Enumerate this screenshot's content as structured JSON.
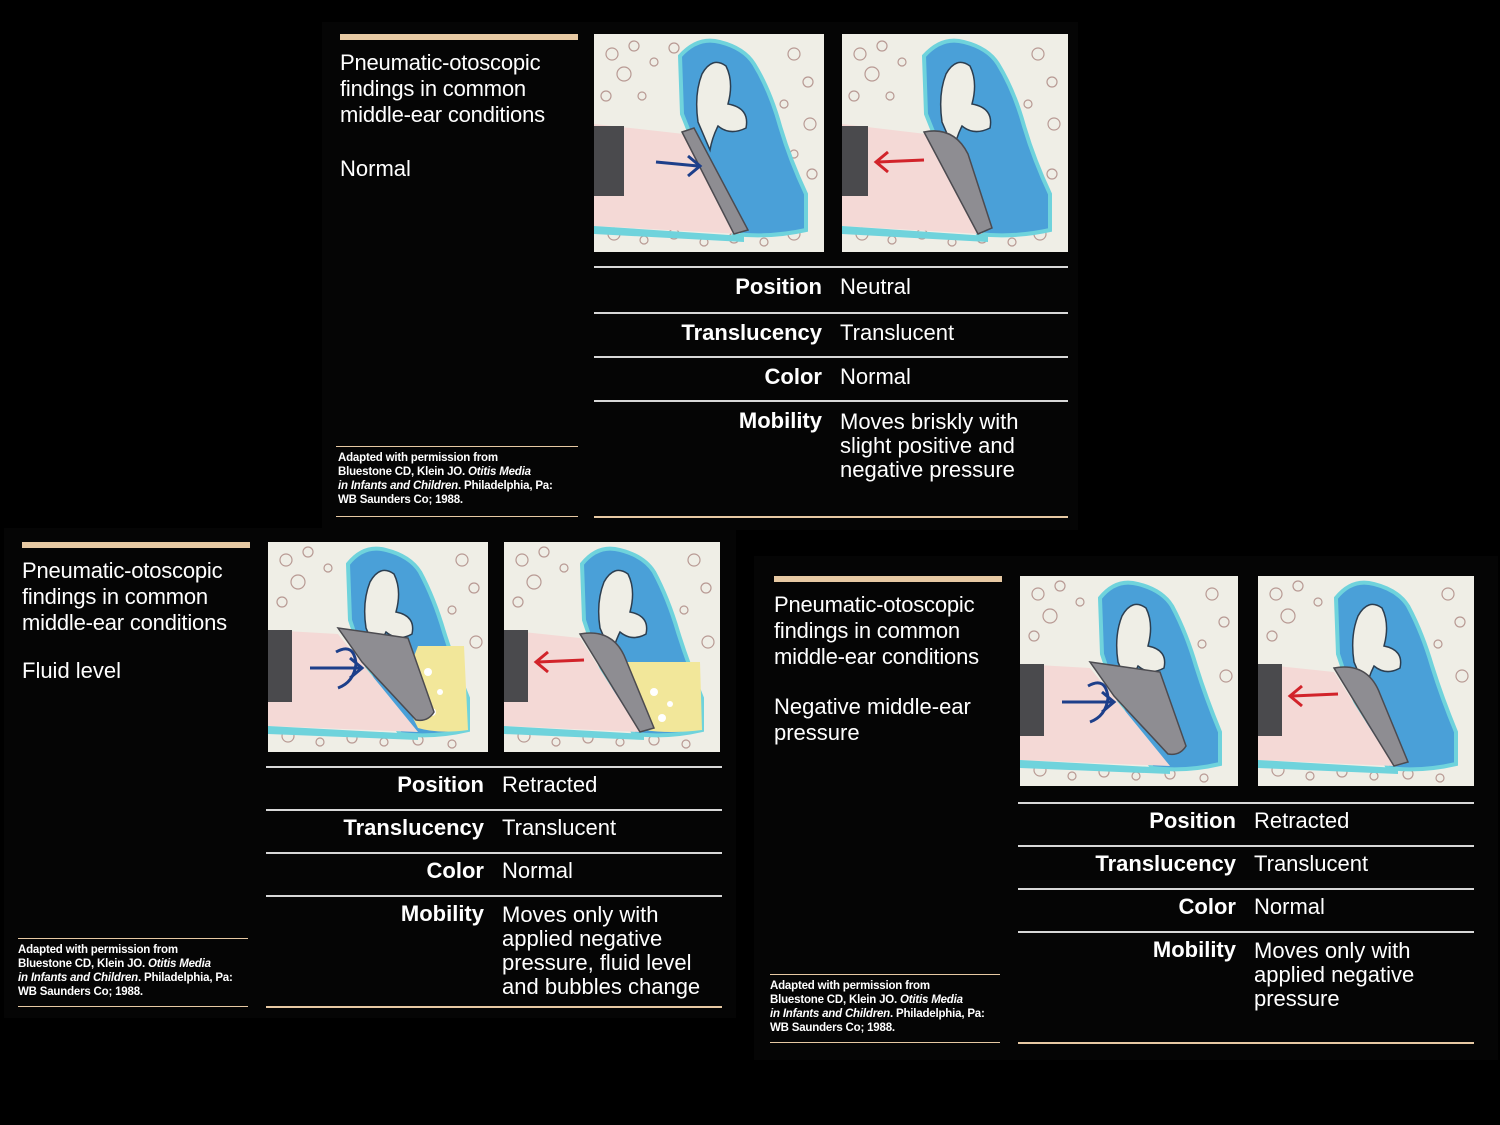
{
  "panels": [
    {
      "title": "Pneumatic-otoscopic\nfindings in common\nmiddle-ear conditions",
      "condition": "Normal",
      "rows": [
        {
          "label": "Position",
          "value": "Neutral"
        },
        {
          "label": "Translucency",
          "value": "Translucent"
        },
        {
          "label": "Color",
          "value": "Normal"
        },
        {
          "label": "Mobility",
          "value": "Moves briskly with\nslight positive and\nnegative pressure"
        }
      ]
    },
    {
      "title": "Pneumatic-otoscopic\nfindings in common\nmiddle-ear conditions",
      "condition": "Fluid level",
      "rows": [
        {
          "label": "Position",
          "value": "Retracted"
        },
        {
          "label": "Translucency",
          "value": "Translucent"
        },
        {
          "label": "Color",
          "value": "Normal"
        },
        {
          "label": "Mobility",
          "value": "Moves only with\napplied negative\npressure, fluid level\nand bubbles change"
        }
      ]
    },
    {
      "title": "Pneumatic-otoscopic\nfindings in common\nmiddle-ear conditions",
      "condition": "Negative middle-ear\npressure",
      "rows": [
        {
          "label": "Position",
          "value": "Retracted"
        },
        {
          "label": "Translucency",
          "value": "Translucent"
        },
        {
          "label": "Color",
          "value": "Normal"
        },
        {
          "label": "Mobility",
          "value": "Moves only with\napplied negative\npressure"
        }
      ]
    }
  ],
  "credit": {
    "line1": "Adapted with permission from",
    "line2_prefix": "Bluestone CD, Klein JO. ",
    "line2_italic": "Otitis Media",
    "line3_italic": "in Infants and Children",
    "line3_suffix": ". Philadelphia, Pa:",
    "line4": "WB Saunders Co; 1988."
  },
  "colors": {
    "background": "#000000",
    "accent_bar": "#e7c9a3",
    "middle_ear_blue": "#4aa0d8",
    "ear_canal_pink": "#f4d9d6",
    "eardrum_gray": "#8e8d92",
    "fluid_yellow": "#f2e79a",
    "arrow_blue": "#1d3f8a",
    "arrow_red": "#d2232a"
  }
}
